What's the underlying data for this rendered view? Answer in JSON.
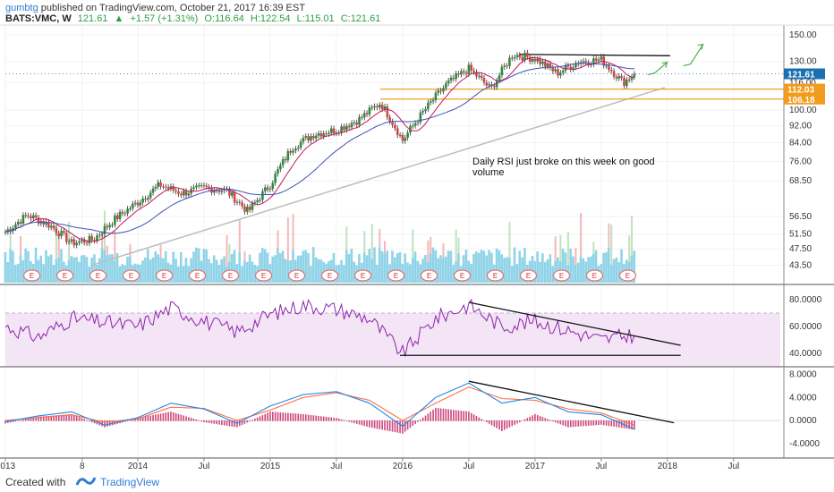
{
  "header": {
    "publisher": "gumbtg",
    "published_text": "published on TradingView.com, October 21, 2017 16:39 EST",
    "symbol": "BATS:VMC, W",
    "last": "121.61",
    "change": "+1.57 (+1.31%)",
    "open": "O:116.64",
    "high": "H:122.54",
    "low": "L:115.01",
    "close": "C:121.61"
  },
  "footer": {
    "created_with": "Created with",
    "brand": "TradingView"
  },
  "colors": {
    "up": "#2e8b3e",
    "down": "#d64545",
    "ma_fast": "#c2185b",
    "ma_slow": "#3f51b5",
    "volume": "#8fd3e8",
    "volume_up": "#a5d6a7",
    "volume_down": "#ef9a9a",
    "support": "#f0a020",
    "trendline": "#bdbdbd",
    "arrow": "#4caf50",
    "rsi": "#8e24aa",
    "rsi_band": "#f3e5f5",
    "macd": "#1e88e5",
    "signal": "#ff7043",
    "hist": "#c2185b",
    "price_tag": "#1a6fb0",
    "level_tag": "#f29b1d"
  },
  "chart_data": [
    {
      "type": "line",
      "panel": "price",
      "ohlc_note": "Weekly candlestick series (approximate closing values)",
      "y_scale": "log",
      "ylim": [
        40,
        155
      ],
      "y_ticks": [
        "150.00",
        "130.00",
        "116.00",
        "100.00",
        "92.00",
        "84.00",
        "76.00",
        "68.50",
        "56.50",
        "51.50",
        "47.50",
        "43.50"
      ],
      "x_ticks": [
        "2013",
        "8",
        "2014",
        "Jul",
        "2015",
        "Jul",
        "2016",
        "Jul",
        "2017",
        "Jul",
        "2018",
        "Jul"
      ],
      "x": [
        "2013-01",
        "2013-03",
        "2013-05",
        "2013-07",
        "2013-09",
        "2013-11",
        "2014-01",
        "2014-03",
        "2014-05",
        "2014-07",
        "2014-09",
        "2014-11",
        "2015-01",
        "2015-03",
        "2015-05",
        "2015-07",
        "2015-09",
        "2015-11",
        "2016-01",
        "2016-03",
        "2016-05",
        "2016-07",
        "2016-09",
        "2016-11",
        "2017-01",
        "2017-03",
        "2017-05",
        "2017-07",
        "2017-09",
        "2017-10"
      ],
      "series": [
        {
          "values": [
            52,
            57,
            54,
            49,
            50,
            56,
            61,
            67,
            64,
            66,
            65,
            58,
            67,
            82,
            88,
            90,
            95,
            104,
            85,
            100,
            115,
            125,
            112,
            135,
            132,
            122,
            130,
            131,
            116,
            121.61
          ]
        }
      ],
      "price_labels": [
        "121.61",
        "112.03",
        "106.18"
      ],
      "support_levels": [
        112.03,
        106.18
      ],
      "annotation": "Daily RSI just broke on this week on good volume",
      "earnings_marker": "E"
    },
    {
      "type": "line",
      "panel": "rsi",
      "ylim": [
        30,
        90
      ],
      "y_ticks": [
        "80.0000",
        "60.0000",
        "40.0000"
      ],
      "x": [
        "2013-01",
        "2013-04",
        "2013-07",
        "2013-10",
        "2014-01",
        "2014-04",
        "2014-07",
        "2014-10",
        "2015-01",
        "2015-04",
        "2015-07",
        "2015-10",
        "2016-01",
        "2016-04",
        "2016-07",
        "2016-10",
        "2017-01",
        "2017-04",
        "2017-07",
        "2017-10"
      ],
      "series": [
        {
          "values": [
            60,
            52,
            66,
            63,
            60,
            74,
            64,
            56,
            69,
            76,
            73,
            66,
            40,
            66,
            76,
            60,
            64,
            57,
            50,
            54
          ]
        }
      ]
    },
    {
      "type": "line",
      "panel": "macd",
      "ylim": [
        -6.5,
        9
      ],
      "y_ticks": [
        "8.0000",
        "4.0000",
        "0.0000",
        "-4.0000"
      ],
      "x": [
        "2013-01",
        "2013-04",
        "2013-07",
        "2013-10",
        "2014-01",
        "2014-04",
        "2014-07",
        "2014-10",
        "2015-01",
        "2015-04",
        "2015-07",
        "2015-10",
        "2016-01",
        "2016-04",
        "2016-07",
        "2016-10",
        "2017-01",
        "2017-04",
        "2017-07",
        "2017-10"
      ],
      "series": [
        {
          "values": [
            -0.2,
            0.8,
            1.5,
            -0.8,
            0.5,
            3.0,
            2.0,
            -0.5,
            2.5,
            4.5,
            5.0,
            3.0,
            -1.0,
            4.0,
            6.5,
            3.0,
            4.0,
            1.5,
            1.0,
            -1.5
          ]
        },
        {
          "values": [
            0.0,
            0.5,
            1.0,
            -0.3,
            0.3,
            2.3,
            2.1,
            0.0,
            1.8,
            4.0,
            4.8,
            3.5,
            0.0,
            3.0,
            5.8,
            3.8,
            3.5,
            2.0,
            1.3,
            -0.8
          ]
        }
      ]
    }
  ]
}
